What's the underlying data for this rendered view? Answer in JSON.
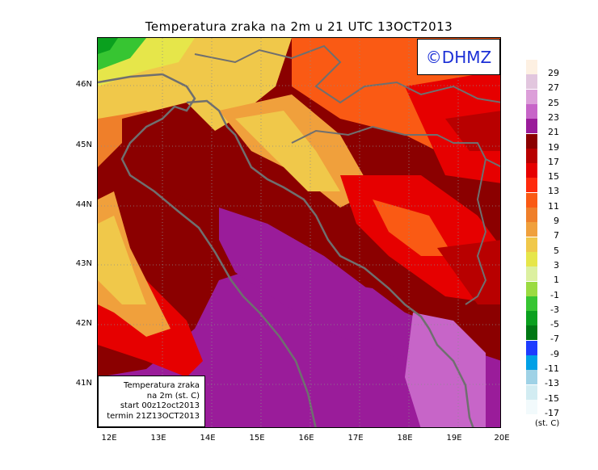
{
  "title": "Temperatura zraka na 2m u 21 UTC 13OCT2013",
  "logo": "©DHMZ",
  "info": {
    "line1": "Temperatura zraka",
    "line2": "na 2m (st. C)",
    "line3": "start 00z12oct2013",
    "line4": "termin 21Z13OCT2013"
  },
  "axes": {
    "lat_labels": [
      "46N",
      "45N",
      "44N",
      "43N",
      "42N",
      "41N"
    ],
    "lon_labels": [
      "12E",
      "13E",
      "14E",
      "15E",
      "16E",
      "17E",
      "18E",
      "19E",
      "20E"
    ]
  },
  "legend": {
    "unit": "(st. C)",
    "items": [
      {
        "label": "29",
        "color": "#fdf0e2"
      },
      {
        "label": "27",
        "color": "#e2c6de"
      },
      {
        "label": "25",
        "color": "#dc9fd9"
      },
      {
        "label": "23",
        "color": "#c765c8"
      },
      {
        "label": "21",
        "color": "#9a1c9a"
      },
      {
        "label": "19",
        "color": "#8b0000"
      },
      {
        "label": "17",
        "color": "#b80000"
      },
      {
        "label": "15",
        "color": "#e60000"
      },
      {
        "label": "13",
        "color": "#ff2a0c"
      },
      {
        "label": "11",
        "color": "#fa5a14"
      },
      {
        "label": "9",
        "color": "#ef7f2a"
      },
      {
        "label": "7",
        "color": "#f0a03c"
      },
      {
        "label": "5",
        "color": "#f0c84a"
      },
      {
        "label": "3",
        "color": "#e6e64a"
      },
      {
        "label": "1",
        "color": "#dcf0a0"
      },
      {
        "label": "-1",
        "color": "#9bdb41"
      },
      {
        "label": "-3",
        "color": "#37c532"
      },
      {
        "label": "-5",
        "color": "#0aa01e"
      },
      {
        "label": "-7",
        "color": "#007814"
      },
      {
        "label": "-9",
        "color": "#1e3cff"
      },
      {
        "label": "-11",
        "color": "#00a0e6"
      },
      {
        "label": "-13",
        "color": "#9fd2e6"
      },
      {
        "label": "-15",
        "color": "#d2ecf2"
      },
      {
        "label": "-17",
        "color": "#f2fafc"
      }
    ]
  },
  "colors": {
    "coast": "#6f6f6f",
    "grid": "#8c8c8c",
    "logo_text": "#1b2fd6"
  }
}
